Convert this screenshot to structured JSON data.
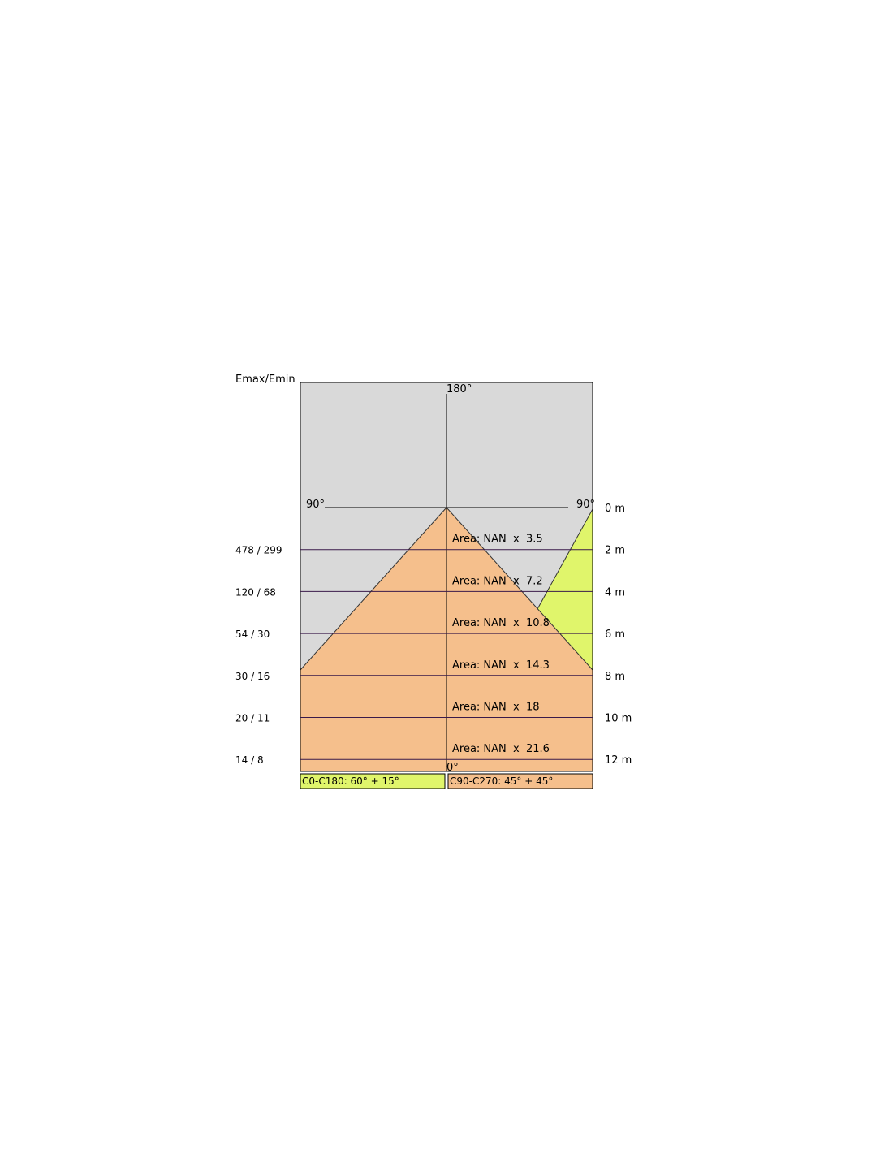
{
  "header": {
    "title": "Emax/Emin"
  },
  "angles": {
    "top": "180°",
    "left": "90°",
    "right": "90°",
    "bottom": "0°"
  },
  "distances": [
    "0 m",
    "2 m",
    "4 m",
    "6 m",
    "8 m",
    "10 m",
    "12 m"
  ],
  "ratios": [
    "478 / 299",
    "120 / 68",
    "54 / 30",
    "30 / 16",
    "20 / 11",
    "14 / 8"
  ],
  "areas": [
    "Area: NAN  x  3.5",
    "Area: NAN  x  7.2",
    "Area: NAN  x  10.8",
    "Area: NAN  x  14.3",
    "Area: NAN  x  18",
    "Area: NAN  x  21.6"
  ],
  "legend": [
    "C0-C180: 60° + 15°",
    "C90-C270: 45° + 45°"
  ]
}
